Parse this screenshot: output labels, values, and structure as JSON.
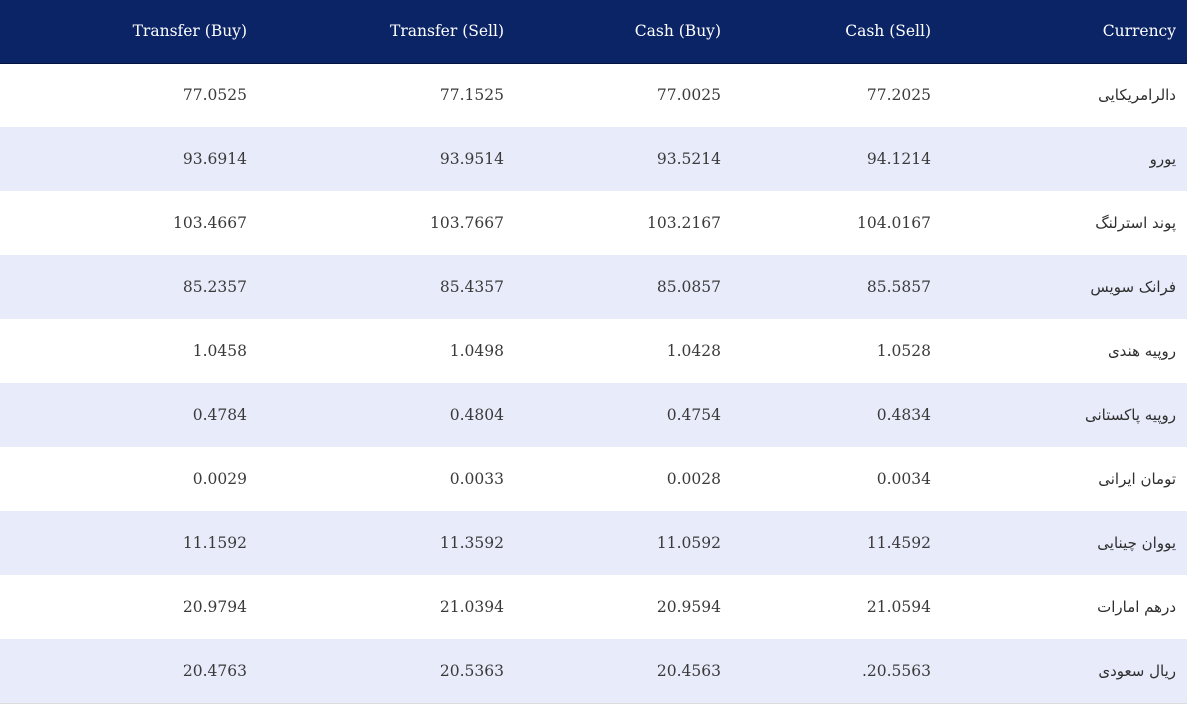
{
  "table": {
    "headers": {
      "transfer_buy": "Transfer (Buy)",
      "transfer_sell": "Transfer (Sell)",
      "cash_buy": "Cash (Buy)",
      "cash_sell": "Cash (Sell)",
      "currency": "Currency"
    },
    "rows": [
      {
        "transfer_buy": "77.0525",
        "transfer_sell": "77.1525",
        "cash_buy": "77.0025",
        "cash_sell": "77.2025",
        "currency": "دالرامریکایی"
      },
      {
        "transfer_buy": "93.6914",
        "transfer_sell": "93.9514",
        "cash_buy": "93.5214",
        "cash_sell": "94.1214",
        "currency": "یورو"
      },
      {
        "transfer_buy": "103.4667",
        "transfer_sell": "103.7667",
        "cash_buy": "103.2167",
        "cash_sell": "104.0167",
        "currency": "پوند استرلنگ"
      },
      {
        "transfer_buy": "85.2357",
        "transfer_sell": "85.4357",
        "cash_buy": "85.0857",
        "cash_sell": "85.5857",
        "currency": "فرانک سویس"
      },
      {
        "transfer_buy": "1.0458",
        "transfer_sell": "1.0498",
        "cash_buy": "1.0428",
        "cash_sell": "1.0528",
        "currency": "روپیه هندی"
      },
      {
        "transfer_buy": "0.4784",
        "transfer_sell": "0.4804",
        "cash_buy": "0.4754",
        "cash_sell": "0.4834",
        "currency": "روپیه پاکستانی"
      },
      {
        "transfer_buy": "0.0029",
        "transfer_sell": "0.0033",
        "cash_buy": "0.0028",
        "cash_sell": "0.0034",
        "currency": "تومان ایرانی"
      },
      {
        "transfer_buy": "11.1592",
        "transfer_sell": "11.3592",
        "cash_buy": "11.0592",
        "cash_sell": "11.4592",
        "currency": "یووان چینایی"
      },
      {
        "transfer_buy": "20.9794",
        "transfer_sell": "21.0394",
        "cash_buy": "20.9594",
        "cash_sell": "21.0594",
        "currency": "درهم امارات"
      },
      {
        "transfer_buy": "20.4763",
        "transfer_sell": "20.5363",
        "cash_buy": "20.4563",
        "cash_sell": ".20.5563",
        "currency": "ریال سعودی"
      }
    ]
  },
  "colors": {
    "header_background": "#0b2466",
    "header_text": "#ffffff",
    "row_alt_background": "#e8ebfa",
    "row_background": "#ffffff"
  }
}
